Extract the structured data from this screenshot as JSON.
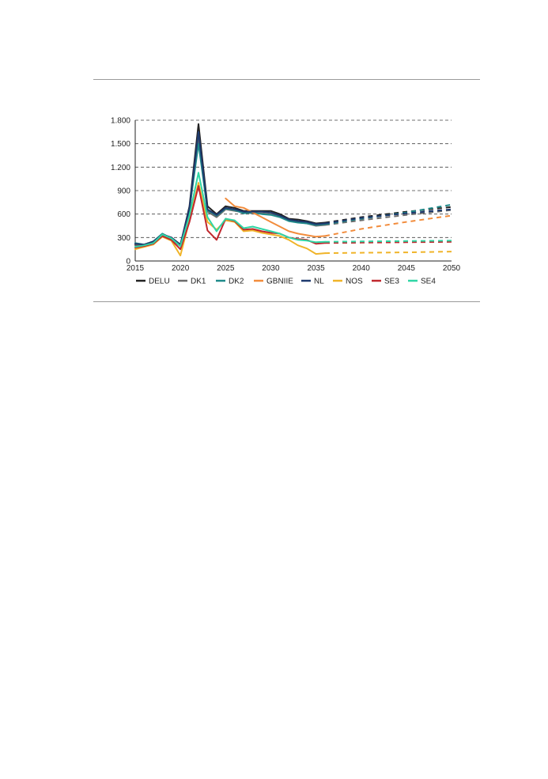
{
  "chart_data": {
    "type": "line",
    "title": "",
    "xlabel": "",
    "ylabel": "",
    "xlim": [
      2015,
      2050
    ],
    "ylim": [
      0,
      1800
    ],
    "x_ticks": [
      2015,
      2020,
      2025,
      2030,
      2035,
      2040,
      2045,
      2050
    ],
    "x_tick_labels": [
      "2015",
      "2020",
      "2025",
      "2030",
      "2035",
      "2040",
      "2045",
      "2050"
    ],
    "y_ticks": [
      0,
      300,
      600,
      900,
      1200,
      1500,
      1800
    ],
    "y_tick_labels": [
      "0",
      "300",
      "600",
      "900",
      "1.200",
      "1.500",
      "1.800"
    ],
    "grid": "horizontal-dashed",
    "legend_position": "bottom",
    "projection_style": "dashed",
    "series": [
      {
        "name": "DELU",
        "color": "#222222",
        "x": [
          2015,
          2016,
          2017,
          2018,
          2019,
          2020,
          2021,
          2022,
          2023,
          2024,
          2025,
          2026,
          2027,
          2028,
          2029,
          2030,
          2031,
          2032,
          2033,
          2034,
          2035,
          2036
        ],
        "values": [
          210,
          210,
          250,
          340,
          300,
          200,
          700,
          1750,
          700,
          600,
          700,
          680,
          640,
          640,
          640,
          640,
          600,
          540,
          530,
          510,
          480,
          490
        ],
        "projection": {
          "x": [
            2036,
            2040,
            2045,
            2050
          ],
          "values": [
            490,
            560,
            630,
            690
          ]
        }
      },
      {
        "name": "DK1",
        "color": "#6b6b6b",
        "x": [
          2015,
          2016,
          2017,
          2018,
          2019,
          2020,
          2021,
          2022,
          2023,
          2024,
          2025,
          2026,
          2027,
          2028,
          2029,
          2030,
          2031,
          2032,
          2033,
          2034,
          2035,
          2036
        ],
        "values": [
          200,
          200,
          240,
          340,
          280,
          190,
          640,
          1580,
          630,
          560,
          660,
          640,
          620,
          610,
          610,
          600,
          570,
          520,
          500,
          480,
          450,
          460
        ],
        "projection": {
          "x": [
            2036,
            2040,
            2045,
            2050
          ],
          "values": [
            460,
            520,
            590,
            650
          ]
        }
      },
      {
        "name": "DK2",
        "color": "#1f8a8a",
        "x": [
          2015,
          2016,
          2017,
          2018,
          2019,
          2020,
          2021,
          2022,
          2023,
          2024,
          2025,
          2026,
          2027,
          2028,
          2029,
          2030,
          2031,
          2032,
          2033,
          2034,
          2035,
          2036
        ],
        "values": [
          230,
          210,
          250,
          350,
          290,
          200,
          660,
          1500,
          650,
          580,
          670,
          650,
          610,
          620,
          600,
          590,
          560,
          510,
          490,
          480,
          460,
          470
        ],
        "projection": {
          "x": [
            2036,
            2040,
            2045,
            2050
          ],
          "values": [
            470,
            540,
            620,
            720
          ]
        }
      },
      {
        "name": "GBNIIE",
        "color": "#f28c3c",
        "x": [
          2025,
          2026,
          2027,
          2028,
          2029,
          2030,
          2031,
          2032,
          2033,
          2034,
          2035,
          2036
        ],
        "values": [
          800,
          700,
          680,
          620,
          560,
          500,
          440,
          380,
          350,
          330,
          310,
          320
        ],
        "projection": {
          "x": [
            2036,
            2040,
            2045,
            2050
          ],
          "values": [
            320,
            410,
            500,
            580
          ]
        }
      },
      {
        "name": "NL",
        "color": "#1e3a6e",
        "x": [
          2015,
          2016,
          2017,
          2018,
          2019,
          2020,
          2021,
          2022,
          2023,
          2024,
          2025,
          2026,
          2027,
          2028,
          2029,
          2030,
          2031,
          2032,
          2033,
          2034,
          2035,
          2036
        ],
        "values": [
          220,
          210,
          250,
          340,
          300,
          210,
          680,
          1650,
          660,
          590,
          680,
          660,
          630,
          630,
          630,
          620,
          580,
          530,
          510,
          500,
          470,
          480
        ],
        "projection": {
          "x": [
            2036,
            2040,
            2045,
            2050
          ],
          "values": [
            480,
            550,
            610,
            660
          ]
        }
      },
      {
        "name": "NOS",
        "color": "#f0b429",
        "x": [
          2015,
          2016,
          2017,
          2018,
          2019,
          2020,
          2021,
          2022,
          2023,
          2024,
          2025,
          2026,
          2027,
          2028,
          2029,
          2030,
          2031,
          2032,
          2033,
          2034,
          2035,
          2036
        ],
        "values": [
          150,
          180,
          210,
          310,
          260,
          70,
          520,
          1000,
          500,
          400,
          520,
          500,
          380,
          390,
          360,
          340,
          320,
          270,
          200,
          160,
          90,
          100
        ],
        "projection": {
          "x": [
            2036,
            2040,
            2045,
            2050
          ],
          "values": [
            100,
            105,
            110,
            120
          ]
        }
      },
      {
        "name": "SE3",
        "color": "#c0282e",
        "x": [
          2015,
          2016,
          2017,
          2018,
          2019,
          2020,
          2021,
          2022,
          2023,
          2024,
          2025,
          2026,
          2027,
          2028,
          2029,
          2030,
          2031,
          2032,
          2033,
          2034,
          2035,
          2036
        ],
        "values": [
          170,
          190,
          220,
          320,
          270,
          150,
          500,
          960,
          390,
          270,
          540,
          510,
          400,
          410,
          380,
          360,
          350,
          300,
          280,
          270,
          220,
          230
        ],
        "projection": {
          "x": [
            2036,
            2040,
            2045,
            2050
          ],
          "values": [
            230,
            235,
            240,
            245
          ]
        }
      },
      {
        "name": "SE4",
        "color": "#2fd6a5",
        "x": [
          2015,
          2016,
          2017,
          2018,
          2019,
          2020,
          2021,
          2022,
          2023,
          2024,
          2025,
          2026,
          2027,
          2028,
          2029,
          2030,
          2031,
          2032,
          2033,
          2034,
          2035,
          2036
        ],
        "values": [
          180,
          200,
          230,
          340,
          290,
          190,
          580,
          1130,
          560,
          380,
          540,
          520,
          420,
          440,
          410,
          380,
          350,
          300,
          270,
          260,
          240,
          245
        ],
        "projection": {
          "x": [
            2036,
            2040,
            2045,
            2050
          ],
          "values": [
            245,
            250,
            255,
            260
          ]
        }
      }
    ]
  }
}
